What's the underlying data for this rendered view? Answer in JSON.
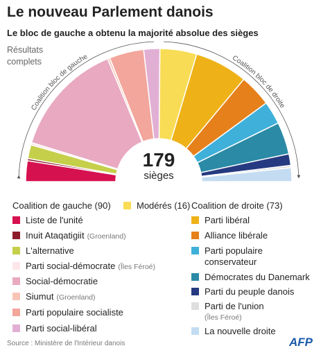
{
  "chart_data": {
    "type": "semicircle",
    "title": "Le nouveau Parlement danois",
    "subtitle": "Le bloc de gauche a obtenu la majorité absolue des sièges",
    "note": "Résultats complets",
    "total": 179,
    "total_label": "sièges",
    "left_arc_label": "Coalition bloc de gauche",
    "right_arc_label": "Coalition bloc de droite",
    "groups": [
      "Coalition de gauche (90)",
      "Coalition de droite (73)"
    ],
    "categories": [
      "Liste de l'unité",
      "Inuit Ataqatigiit",
      "L'alternative",
      "Parti social-démocrate",
      "Social-démocratie",
      "Siumut",
      "Parti populaire socialiste",
      "Parti social-libéral",
      "Modérés (16)",
      "Parti libéral",
      "Alliance libérale",
      "Parti populaire conservateur",
      "Démocrates du Danemark",
      "Parti du peuple danois",
      "Parti de l'union",
      "La nouvelle droite"
    ],
    "category_notes": [
      null,
      "(Groenland)",
      null,
      "(Îles Féroé)",
      null,
      "(Groenland)",
      null,
      null,
      null,
      null,
      null,
      null,
      null,
      null,
      "(Îles Féroé)",
      null
    ],
    "values": [
      9,
      1,
      6,
      1,
      50,
      1,
      15,
      7,
      16,
      23,
      14,
      10,
      14,
      5,
      1,
      6
    ],
    "colors": [
      "#d6114f",
      "#8c1a2a",
      "#c5cf4a",
      "#fde6ea",
      "#e8a9c1",
      "#f6c5b5",
      "#f2a69c",
      "#e2afd4",
      "#f9dc55",
      "#eeb218",
      "#e6801b",
      "#3fb0d9",
      "#2b8aa6",
      "#253a80",
      "#dedede",
      "#c3dcf2"
    ],
    "source": "Source : Ministère de l'Intérieur danois",
    "logo": "AFP"
  }
}
